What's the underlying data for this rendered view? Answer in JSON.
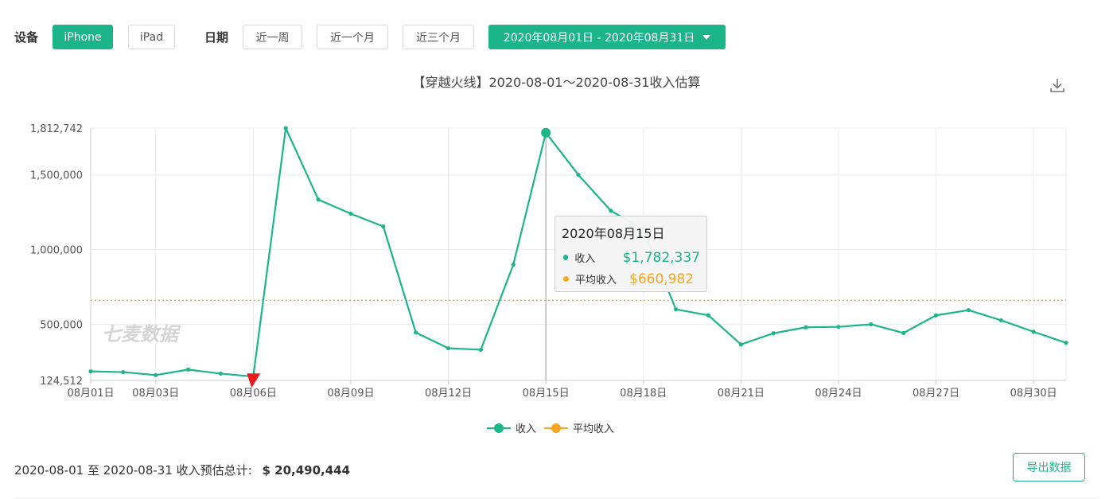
{
  "filters": {
    "device_label": "设备",
    "device_options": [
      {
        "label": "iPhone",
        "active": true
      },
      {
        "label": "iPad",
        "active": false
      }
    ],
    "date_label": "日期",
    "date_options": [
      {
        "label": "近一周"
      },
      {
        "label": "近一个月"
      },
      {
        "label": "近三个月"
      }
    ],
    "date_range": "2020年08月01日 - 2020年08月31日"
  },
  "chart_title": "【穿越火线】2020-08-01～2020-08-31收入估算",
  "icons": {
    "download": "download-icon"
  },
  "colors": {
    "revenue": "#1cb58a",
    "average": "#f5a623",
    "accent": "#1cb58a",
    "min_marker": "#e8191a"
  },
  "watermark": "七麦数据",
  "tooltip": {
    "title": "2020年08月15日",
    "rows": [
      {
        "name": "收入",
        "value": "$1,782,337"
      },
      {
        "name": "平均收入",
        "value": "$660,982"
      }
    ]
  },
  "legend": [
    {
      "name": "收入"
    },
    {
      "name": "平均收入"
    }
  ],
  "total": {
    "label": "2020-08-01 至 2020-08-31 收入预估总计:",
    "value": "$ 20,490,444"
  },
  "export_label": "导出数据",
  "chart_data": {
    "type": "line",
    "title": "【穿越火线】2020-08-01～2020-08-31收入估算",
    "x": [
      "08月01日",
      "08月02日",
      "08月03日",
      "08月04日",
      "08月05日",
      "08月06日",
      "08月07日",
      "08月08日",
      "08月09日",
      "08月10日",
      "08月11日",
      "08月12日",
      "08月13日",
      "08月14日",
      "08月15日",
      "08月16日",
      "08月17日",
      "08月18日",
      "08月19日",
      "08月20日",
      "08月21日",
      "08月22日",
      "08月23日",
      "08月24日",
      "08月25日",
      "08月26日",
      "08月27日",
      "08月28日",
      "08月29日",
      "08月30日",
      "08月31日"
    ],
    "x_tick_labels": [
      "08月01日",
      "08月03日",
      "08月06日",
      "08月09日",
      "08月12日",
      "08月15日",
      "08月18日",
      "08月21日",
      "08月24日",
      "08月27日",
      "08月30日"
    ],
    "x_tick_days": [
      1,
      3,
      6,
      9,
      12,
      15,
      18,
      21,
      24,
      27,
      30
    ],
    "y_ticks": [
      124512,
      500000,
      1000000,
      1500000,
      1812742
    ],
    "y_tick_labels": [
      "124,512",
      "500,000",
      "1,000,000",
      "1,500,000",
      "1,812,742"
    ],
    "ylim": [
      124512,
      1812742
    ],
    "series": [
      {
        "name": "收入",
        "values": [
          185000,
          180000,
          160000,
          197000,
          170000,
          150000,
          1812742,
          1335000,
          1240000,
          1155000,
          445000,
          340000,
          330000,
          900000,
          1782337,
          1500000,
          1260000,
          1135000,
          600000,
          560000,
          365000,
          440000,
          480000,
          483000,
          500000,
          442000,
          560000,
          595000,
          527000,
          450000,
          376000
        ]
      },
      {
        "name": "平均收入",
        "values": [
          660982,
          660982,
          660982,
          660982,
          660982,
          660982,
          660982,
          660982,
          660982,
          660982,
          660982,
          660982,
          660982,
          660982,
          660982,
          660982,
          660982,
          660982,
          660982,
          660982,
          660982,
          660982,
          660982,
          660982,
          660982,
          660982,
          660982,
          660982,
          660982,
          660982,
          660982
        ]
      }
    ],
    "grid": true,
    "legend_position": "bottom-center",
    "highlight": {
      "x": "08月15日",
      "value": 1782337
    }
  }
}
